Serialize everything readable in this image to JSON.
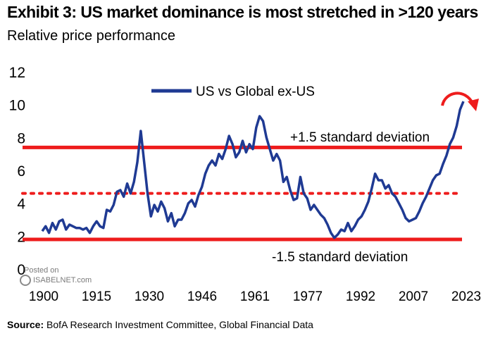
{
  "title": "Exhibit 3: US market dominance is most stretched in >120 years",
  "subtitle": "Relative price performance",
  "source": {
    "label": "Source:",
    "text": "BofA Research Investment Committee, Global Financial Data"
  },
  "watermark": {
    "line1": "Posted on",
    "line2": "ISABELNET.com"
  },
  "colors": {
    "series": "#1f3a93",
    "bands": "#ee1c1c",
    "text": "#000000"
  },
  "chart_data": {
    "type": "line",
    "title": "Exhibit 3: US market dominance is most stretched in >120 years",
    "subtitle": "Relative price performance",
    "ylim": [
      0,
      12
    ],
    "yticks": [
      0,
      2,
      4,
      6,
      8,
      10,
      12
    ],
    "xlim": [
      1900,
      2024
    ],
    "xticks": [
      "1900",
      "1915",
      "1930",
      "1946",
      "1961",
      "1977",
      "1992",
      "2007",
      "2023"
    ],
    "legend": {
      "position": "top-left",
      "entries": [
        "US vs Global ex-US"
      ]
    },
    "series": [
      {
        "name": "US vs Global ex-US",
        "x": [
          1900,
          1901,
          1902,
          1903,
          1904,
          1905,
          1906,
          1907,
          1908,
          1909,
          1910,
          1911,
          1912,
          1913,
          1914,
          1915,
          1916,
          1917,
          1918,
          1919,
          1920,
          1921,
          1922,
          1923,
          1924,
          1925,
          1926,
          1927,
          1928,
          1929,
          1930,
          1931,
          1932,
          1933,
          1934,
          1935,
          1936,
          1937,
          1938,
          1939,
          1940,
          1941,
          1942,
          1943,
          1944,
          1945,
          1946,
          1947,
          1948,
          1949,
          1950,
          1951,
          1952,
          1953,
          1954,
          1955,
          1956,
          1957,
          1958,
          1959,
          1960,
          1961,
          1962,
          1963,
          1964,
          1965,
          1966,
          1967,
          1968,
          1969,
          1970,
          1971,
          1972,
          1973,
          1974,
          1975,
          1976,
          1977,
          1978,
          1979,
          1980,
          1981,
          1982,
          1983,
          1984,
          1985,
          1986,
          1987,
          1988,
          1989,
          1990,
          1991,
          1992,
          1993,
          1994,
          1995,
          1996,
          1997,
          1998,
          1999,
          2000,
          2001,
          2002,
          2003,
          2004,
          2005,
          2006,
          2007,
          2008,
          2009,
          2010,
          2011,
          2012,
          2013,
          2014,
          2015,
          2016,
          2017,
          2018,
          2019,
          2020,
          2021,
          2022,
          2023,
          2024
        ],
        "values": [
          2.3,
          2.6,
          2.2,
          2.8,
          2.4,
          2.9,
          3.0,
          2.4,
          2.7,
          2.6,
          2.5,
          2.5,
          2.4,
          2.5,
          2.2,
          2.6,
          2.9,
          2.6,
          2.5,
          3.6,
          3.5,
          3.9,
          4.7,
          4.8,
          4.4,
          5.2,
          4.6,
          5.3,
          6.5,
          8.4,
          6.5,
          4.6,
          3.2,
          3.9,
          3.5,
          4.1,
          3.7,
          2.9,
          3.4,
          2.6,
          3.0,
          3.0,
          3.4,
          4.0,
          4.2,
          3.8,
          4.5,
          5.0,
          5.8,
          6.3,
          6.6,
          6.3,
          7.0,
          6.7,
          7.3,
          8.1,
          7.6,
          6.8,
          7.1,
          7.8,
          7.1,
          7.6,
          7.3,
          8.6,
          9.3,
          9.0,
          8.0,
          7.3,
          6.6,
          7.0,
          6.6,
          5.3,
          5.6,
          4.8,
          4.2,
          4.3,
          5.6,
          4.6,
          4.3,
          3.6,
          3.9,
          3.6,
          3.3,
          3.1,
          2.7,
          2.2,
          1.9,
          2.1,
          2.4,
          2.3,
          2.8,
          2.3,
          2.6,
          3.0,
          3.2,
          3.6,
          4.1,
          4.9,
          5.8,
          5.4,
          5.4,
          4.9,
          5.1,
          4.6,
          4.4,
          4.0,
          3.6,
          3.1,
          2.9,
          3.0,
          3.1,
          3.5,
          4.0,
          4.4,
          4.9,
          5.4,
          5.7,
          5.8,
          6.4,
          6.9,
          7.6,
          8.0,
          8.7,
          9.7,
          10.2
        ]
      }
    ],
    "reference_lines": [
      {
        "label": "+1.5 standard deviation",
        "value": 7.4,
        "style": "solid"
      },
      {
        "label": "",
        "value": 4.6,
        "style": "dotted"
      },
      {
        "label": "-1.5 standard deviation",
        "value": 1.8,
        "style": "solid"
      }
    ]
  }
}
